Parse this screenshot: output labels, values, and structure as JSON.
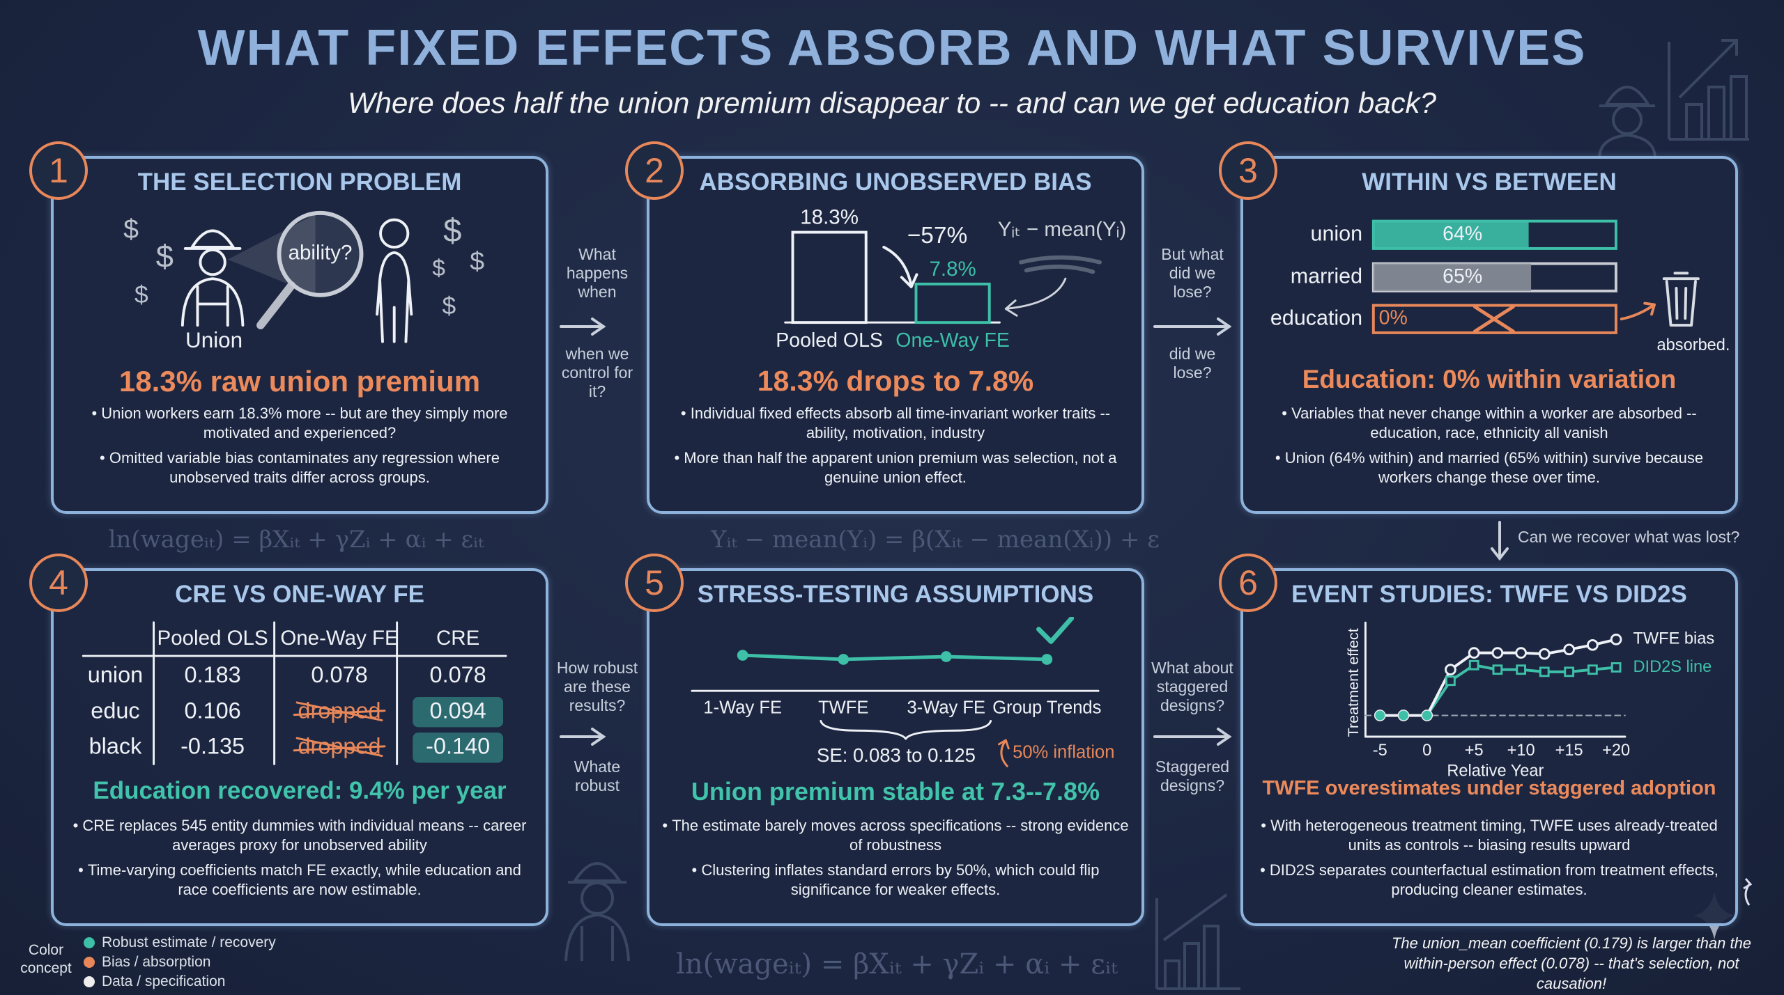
{
  "header": {
    "title": "WHAT FIXED EFFECTS ABSORB AND WHAT SURVIVES",
    "subtitle": "Where does half the union premium disappear to -- and can we get education back?"
  },
  "panels": [
    {
      "number": "1",
      "title": "THE SELECTION PROBLEM",
      "figure": {
        "symbol": "$",
        "bubble": "ability?",
        "caption": "Union"
      },
      "headline": "18.3% raw union premium",
      "bullets": [
        "Union workers earn 18.3% more -- but are they simply more motivated and experienced?",
        "Omitted variable bias contaminates any regression where unobserved traits differ across groups."
      ]
    },
    {
      "number": "2",
      "title": "ABSORBING UNOBSERVED BIAS",
      "figure": {
        "bars": [
          {
            "label": "Pooled OLS",
            "value": 18.3,
            "value_label": "18.3%"
          },
          {
            "label": "One-Way FE",
            "value": 7.8,
            "value_label": "7.8%"
          }
        ],
        "change": "−57%",
        "note": "Yᵢₜ − mean(Yᵢ)"
      },
      "headline": "18.3% drops to 7.8%",
      "bullets": [
        "Individual fixed effects absorb all time-invariant worker traits -- ability, motivation, industry",
        "More than half the apparent union premium was selection, not a genuine union effect."
      ]
    },
    {
      "number": "3",
      "title": "WITHIN VS BETWEEN",
      "figure": {
        "bars": [
          {
            "label": "union",
            "value": 64,
            "value_label": "64%"
          },
          {
            "label": "married",
            "value": 65,
            "value_label": "65%"
          },
          {
            "label": "education",
            "value": 0,
            "value_label": "0%"
          }
        ],
        "note": "absorbed."
      },
      "headline": "Education: 0% within variation",
      "bullets": [
        "Variables that never change within a worker are absorbed -- education, race, ethnicity all vanish",
        "Union (64% within) and married (65% within) survive because workers change these over time."
      ]
    },
    {
      "number": "4",
      "title": "CRE VS ONE-WAY FE",
      "figure": {
        "columns": [
          "Pooled OLS",
          "One-Way FE",
          "CRE"
        ],
        "rows": [
          [
            "union",
            "0.183",
            "0.078",
            "0.078"
          ],
          [
            "educ",
            "0.106",
            "dropped",
            "0.094"
          ],
          [
            "black",
            "-0.135",
            "dropped",
            "-0.140"
          ]
        ]
      },
      "headline": "Education recovered: 9.4% per year",
      "bullets": [
        "CRE replaces 545 entity dummies with individual means -- career averages proxy for unobserved ability",
        "Time-varying coefficients match FE exactly, while education and race coefficients are now estimable."
      ]
    },
    {
      "number": "5",
      "title": "STRESS-TESTING ASSUMPTIONS",
      "figure": {
        "specs": [
          "1-Way FE",
          "TWFE",
          "3-Way FE",
          "Group Trends"
        ],
        "se_note": "SE: 0.083 to 0.125",
        "inflation_note": "50% inflation"
      },
      "headline": "Union premium stable at 7.3--7.8%",
      "bullets": [
        "The estimate barely moves across specifications -- strong evidence of robustness",
        "Clustering inflates standard errors by 50%, which could flip significance for weaker effects."
      ]
    },
    {
      "number": "6",
      "title": "EVENT STUDIES: TWFE VS DID2S",
      "figure": {
        "y_label": "Treatment effect",
        "x_label": "Relative Year",
        "x_ticks": [
          "-5",
          "0",
          "+5",
          "+10",
          "+15",
          "+20"
        ],
        "series": [
          "TWFE bias",
          "DID2S line"
        ]
      },
      "headline": "TWFE overestimates under staggered adoption",
      "bullets": [
        "With heterogeneous treatment timing, TWFE uses already-treated units as controls -- biasing results upward",
        "DID2S separates counterfactual estimation from treatment effects, producing cleaner estimates."
      ]
    }
  ],
  "transitions": [
    {
      "above": "What happens when",
      "below": "when we control for it?"
    },
    {
      "above": "But what did we lose?",
      "below": "did we lose?"
    },
    {
      "above": "How robust are these results?",
      "below": "Whate robust"
    },
    {
      "above": "What about staggered designs?",
      "below": "Staggered designs?"
    }
  ],
  "recover_note": "Can we recover what was lost?",
  "formulas": [
    "ln(wageᵢₜ) = βXᵢₜ + γZᵢ + αᵢ + εᵢₜ",
    "Yᵢₜ − mean(Yᵢ) = β(Xᵢₜ − mean(Xᵢ)) + ε"
  ],
  "legend": {
    "title": "Color concept",
    "items": [
      "Robust estimate / recovery",
      "Bias / absorption",
      "Data / specification"
    ]
  },
  "footnote": "The union_mean coefficient (0.179) is larger than the within-person effect (0.078) -- that's selection, not causation!"
}
